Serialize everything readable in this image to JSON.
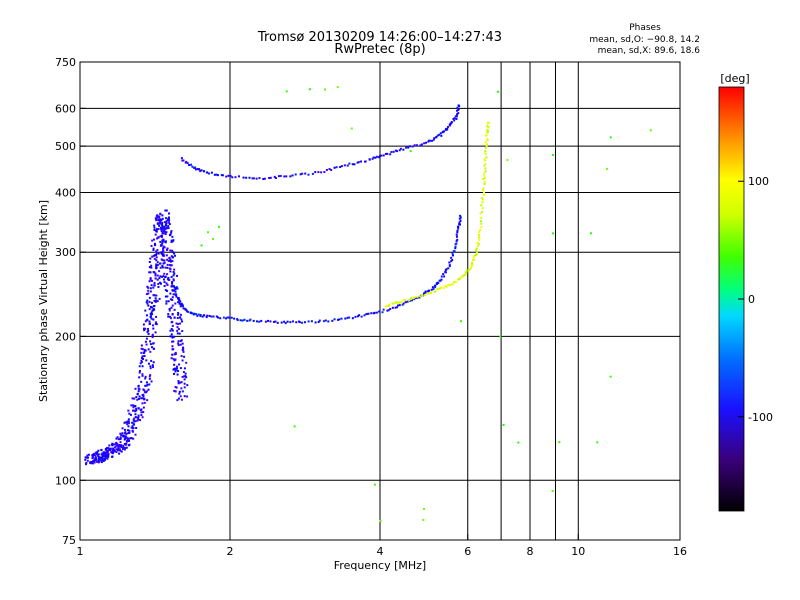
{
  "chart_data": {
    "type": "scatter",
    "title": "Tromsø 20130209 14:26:00–14:27:43",
    "subtitle": "RwPretec (8p)",
    "xlabel": "Frequency [MHz]",
    "ylabel": "Stationary phase Virtual Height [km]",
    "x_scale": "log",
    "y_scale": "log",
    "xlim": [
      1,
      16
    ],
    "ylim": [
      75,
      750
    ],
    "x_ticks": [
      1,
      2,
      4,
      6,
      8,
      10,
      16
    ],
    "x_tick_labels": [
      "1",
      "2",
      "4",
      "6",
      "8",
      "10",
      "16"
    ],
    "x_grid": [
      2,
      4,
      6,
      7,
      8,
      9,
      10
    ],
    "y_ticks": [
      75,
      100,
      200,
      300,
      400,
      500,
      600,
      750
    ],
    "y_tick_labels": [
      "75",
      "100",
      "200",
      "300",
      "400",
      "500",
      "600",
      "750"
    ],
    "y_grid": [
      100,
      200,
      300,
      400,
      500,
      600
    ],
    "phases_box": {
      "heading": "Phases",
      "line_o": "mean, sd,O: −90.8, 14.2",
      "line_x": "mean, sd,X:  89.6, 18.6"
    },
    "colorbar": {
      "label": "[deg]",
      "range": [
        -180,
        180
      ],
      "ticks": [
        100,
        0,
        -100
      ],
      "tick_labels": [
        "100",
        "0",
        "-100"
      ]
    },
    "series": [
      {
        "name": "F-layer O trace (lower)",
        "phase": -100,
        "points": [
          [
            1.53,
            260
          ],
          [
            1.57,
            240
          ],
          [
            1.62,
            228
          ],
          [
            1.7,
            222
          ],
          [
            1.8,
            220
          ],
          [
            2.0,
            218
          ],
          [
            2.2,
            216
          ],
          [
            2.5,
            214
          ],
          [
            2.8,
            214
          ],
          [
            3.2,
            216
          ],
          [
            3.6,
            220
          ],
          [
            4.0,
            225
          ],
          [
            4.4,
            232
          ],
          [
            4.8,
            242
          ],
          [
            5.1,
            252
          ],
          [
            5.3,
            262
          ],
          [
            5.5,
            280
          ],
          [
            5.65,
            305
          ],
          [
            5.75,
            335
          ],
          [
            5.8,
            358
          ]
        ]
      },
      {
        "name": "F-layer X trace (lower)",
        "phase": 100,
        "points": [
          [
            4.1,
            232
          ],
          [
            4.4,
            236
          ],
          [
            4.8,
            242
          ],
          [
            5.2,
            250
          ],
          [
            5.6,
            258
          ],
          [
            5.9,
            268
          ],
          [
            6.1,
            280
          ],
          [
            6.25,
            300
          ],
          [
            6.35,
            330
          ],
          [
            6.42,
            380
          ],
          [
            6.48,
            430
          ],
          [
            6.52,
            480
          ],
          [
            6.56,
            530
          ],
          [
            6.6,
            560
          ]
        ]
      },
      {
        "name": "Upper O trace",
        "phase": -105,
        "points": [
          [
            1.6,
            470
          ],
          [
            1.7,
            450
          ],
          [
            1.8,
            440
          ],
          [
            2.0,
            432
          ],
          [
            2.3,
            428
          ],
          [
            2.6,
            432
          ],
          [
            3.0,
            440
          ],
          [
            3.4,
            455
          ],
          [
            3.8,
            468
          ],
          [
            4.1,
            480
          ],
          [
            4.5,
            495
          ],
          [
            5.0,
            510
          ],
          [
            5.3,
            528
          ],
          [
            5.5,
            550
          ],
          [
            5.7,
            575
          ],
          [
            5.75,
            610
          ]
        ]
      },
      {
        "name": "Low-frequency E/F1 cluster",
        "phase": -110,
        "spread": true,
        "points": [
          [
            1.05,
            110
          ],
          [
            1.1,
            112
          ],
          [
            1.15,
            114
          ],
          [
            1.2,
            118
          ],
          [
            1.25,
            125
          ],
          [
            1.3,
            140
          ],
          [
            1.35,
            160
          ],
          [
            1.38,
            200
          ],
          [
            1.4,
            240
          ],
          [
            1.42,
            280
          ],
          [
            1.45,
            330
          ],
          [
            1.47,
            360
          ],
          [
            1.5,
            300
          ],
          [
            1.52,
            260
          ],
          [
            1.55,
            220
          ],
          [
            1.58,
            180
          ],
          [
            1.6,
            150
          ]
        ]
      },
      {
        "name": "Scattered echoes",
        "phase": 60,
        "points": [
          [
            1.8,
            330
          ],
          [
            1.85,
            320
          ],
          [
            1.9,
            340
          ],
          [
            1.75,
            310
          ],
          [
            2.9,
            655
          ],
          [
            3.1,
            660
          ],
          [
            3.3,
            665
          ],
          [
            2.6,
            650
          ],
          [
            3.5,
            545
          ],
          [
            4.6,
            490
          ],
          [
            6.9,
            650
          ],
          [
            7.2,
            470
          ],
          [
            8.9,
            480
          ],
          [
            8.9,
            330
          ],
          [
            9.2,
            120
          ],
          [
            11.6,
            520
          ],
          [
            11.4,
            450
          ],
          [
            10.6,
            330
          ],
          [
            11.6,
            165
          ],
          [
            14.0,
            540
          ],
          [
            4.9,
            83
          ],
          [
            4.9,
            87
          ],
          [
            4.0,
            82
          ],
          [
            2.7,
            130
          ],
          [
            3.9,
            98
          ],
          [
            7.1,
            130
          ],
          [
            7.6,
            120
          ],
          [
            8.9,
            95
          ],
          [
            5.8,
            215
          ],
          [
            7.0,
            200
          ],
          [
            10.9,
            120
          ]
        ]
      }
    ]
  }
}
